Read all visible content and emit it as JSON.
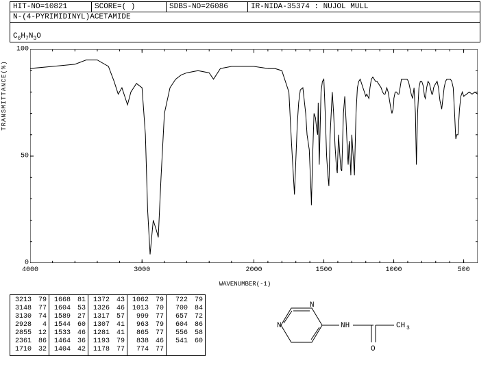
{
  "header": {
    "hit_no_label": "HIT-NO=",
    "hit_no": "10821",
    "score_label": "SCORE=",
    "score": "(   )",
    "sdbs_label": "SDBS-NO=",
    "sdbs_no": "26086",
    "method": "IR-NIDA-35374 : NUJOL MULL"
  },
  "compound_name": "N-(4-PYRIMIDINYL)ACETAMIDE",
  "formula_html": "C<sub>6</sub>H<sub>7</sub>N<sub>3</sub>O",
  "chart": {
    "type": "line",
    "y_label": "TRANSMITTANCE(%)",
    "x_label": "WAVENUMBER(-1)",
    "xlim": [
      4000,
      400
    ],
    "ylim": [
      0,
      100
    ],
    "x_ticks": [
      4000,
      3000,
      2000,
      1500,
      1000,
      500
    ],
    "y_ticks": [
      0,
      50,
      100
    ],
    "line_color": "#000000",
    "background": "#ffffff",
    "spectrum": [
      [
        4000,
        91
      ],
      [
        3800,
        92
      ],
      [
        3600,
        93
      ],
      [
        3500,
        95
      ],
      [
        3400,
        95
      ],
      [
        3300,
        92
      ],
      [
        3250,
        85
      ],
      [
        3213,
        79
      ],
      [
        3180,
        82
      ],
      [
        3148,
        77
      ],
      [
        3130,
        74
      ],
      [
        3100,
        80
      ],
      [
        3050,
        84
      ],
      [
        3000,
        82
      ],
      [
        2970,
        60
      ],
      [
        2950,
        25
      ],
      [
        2928,
        4
      ],
      [
        2900,
        20
      ],
      [
        2870,
        15
      ],
      [
        2855,
        12
      ],
      [
        2830,
        40
      ],
      [
        2800,
        70
      ],
      [
        2750,
        82
      ],
      [
        2700,
        86
      ],
      [
        2650,
        88
      ],
      [
        2600,
        89
      ],
      [
        2500,
        90
      ],
      [
        2400,
        89
      ],
      [
        2361,
        86
      ],
      [
        2300,
        91
      ],
      [
        2200,
        92
      ],
      [
        2100,
        92
      ],
      [
        2000,
        92
      ],
      [
        1900,
        91
      ],
      [
        1850,
        91
      ],
      [
        1800,
        90
      ],
      [
        1750,
        80
      ],
      [
        1730,
        55
      ],
      [
        1710,
        32
      ],
      [
        1690,
        65
      ],
      [
        1680,
        75
      ],
      [
        1668,
        81
      ],
      [
        1650,
        82
      ],
      [
        1630,
        70
      ],
      [
        1620,
        60
      ],
      [
        1604,
        53
      ],
      [
        1590,
        30
      ],
      [
        1589,
        27
      ],
      [
        1580,
        50
      ],
      [
        1570,
        70
      ],
      [
        1560,
        68
      ],
      [
        1550,
        62
      ],
      [
        1544,
        60
      ],
      [
        1540,
        75
      ],
      [
        1533,
        46
      ],
      [
        1520,
        80
      ],
      [
        1510,
        85
      ],
      [
        1500,
        86
      ],
      [
        1490,
        70
      ],
      [
        1480,
        50
      ],
      [
        1470,
        40
      ],
      [
        1464,
        36
      ],
      [
        1455,
        60
      ],
      [
        1440,
        80
      ],
      [
        1430,
        70
      ],
      [
        1420,
        55
      ],
      [
        1410,
        45
      ],
      [
        1404,
        42
      ],
      [
        1395,
        60
      ],
      [
        1385,
        50
      ],
      [
        1378,
        44
      ],
      [
        1372,
        43
      ],
      [
        1360,
        70
      ],
      [
        1350,
        78
      ],
      [
        1340,
        65
      ],
      [
        1330,
        50
      ],
      [
        1326,
        46
      ],
      [
        1320,
        55
      ],
      [
        1317,
        57
      ],
      [
        1310,
        45
      ],
      [
        1307,
        41
      ],
      [
        1300,
        60
      ],
      [
        1290,
        50
      ],
      [
        1281,
        41
      ],
      [
        1270,
        70
      ],
      [
        1260,
        82
      ],
      [
        1250,
        85
      ],
      [
        1240,
        86
      ],
      [
        1230,
        84
      ],
      [
        1220,
        82
      ],
      [
        1210,
        80
      ],
      [
        1200,
        78
      ],
      [
        1193,
        79
      ],
      [
        1185,
        78
      ],
      [
        1178,
        77
      ],
      [
        1170,
        82
      ],
      [
        1160,
        86
      ],
      [
        1150,
        87
      ],
      [
        1140,
        86
      ],
      [
        1130,
        85
      ],
      [
        1120,
        85
      ],
      [
        1110,
        84
      ],
      [
        1100,
        83
      ],
      [
        1090,
        82
      ],
      [
        1080,
        80
      ],
      [
        1070,
        79
      ],
      [
        1062,
        79
      ],
      [
        1050,
        82
      ],
      [
        1040,
        80
      ],
      [
        1030,
        76
      ],
      [
        1020,
        72
      ],
      [
        1013,
        70
      ],
      [
        1005,
        72
      ],
      [
        1000,
        75
      ],
      [
        999,
        77
      ],
      [
        990,
        80
      ],
      [
        980,
        80
      ],
      [
        970,
        79
      ],
      [
        963,
        79
      ],
      [
        955,
        82
      ],
      [
        945,
        86
      ],
      [
        935,
        86
      ],
      [
        925,
        86
      ],
      [
        915,
        86
      ],
      [
        905,
        86
      ],
      [
        895,
        85
      ],
      [
        885,
        82
      ],
      [
        875,
        79
      ],
      [
        865,
        77
      ],
      [
        855,
        82
      ],
      [
        845,
        70
      ],
      [
        838,
        46
      ],
      [
        830,
        70
      ],
      [
        820,
        82
      ],
      [
        810,
        85
      ],
      [
        800,
        85
      ],
      [
        790,
        83
      ],
      [
        780,
        78
      ],
      [
        774,
        77
      ],
      [
        765,
        82
      ],
      [
        755,
        85
      ],
      [
        745,
        84
      ],
      [
        735,
        81
      ],
      [
        728,
        79
      ],
      [
        722,
        79
      ],
      [
        715,
        82
      ],
      [
        708,
        83
      ],
      [
        700,
        84
      ],
      [
        690,
        85
      ],
      [
        680,
        82
      ],
      [
        670,
        76
      ],
      [
        660,
        73
      ],
      [
        657,
        72
      ],
      [
        650,
        76
      ],
      [
        640,
        82
      ],
      [
        630,
        85
      ],
      [
        620,
        86
      ],
      [
        610,
        86
      ],
      [
        604,
        86
      ],
      [
        595,
        86
      ],
      [
        585,
        85
      ],
      [
        575,
        82
      ],
      [
        565,
        70
      ],
      [
        558,
        60
      ],
      [
        556,
        58
      ],
      [
        550,
        60
      ],
      [
        545,
        60
      ],
      [
        541,
        60
      ],
      [
        530,
        72
      ],
      [
        520,
        78
      ],
      [
        510,
        80
      ],
      [
        500,
        78
      ],
      [
        480,
        79
      ],
      [
        460,
        80
      ],
      [
        440,
        79
      ],
      [
        420,
        80
      ],
      [
        400,
        79
      ]
    ]
  },
  "peak_table": {
    "columns": [
      [
        [
          3213,
          79
        ],
        [
          3148,
          77
        ],
        [
          3130,
          74
        ],
        [
          2928,
          4
        ],
        [
          2855,
          12
        ],
        [
          2361,
          86
        ],
        [
          1710,
          32
        ]
      ],
      [
        [
          1668,
          81
        ],
        [
          1604,
          53
        ],
        [
          1589,
          27
        ],
        [
          1544,
          60
        ],
        [
          1533,
          46
        ],
        [
          1464,
          36
        ],
        [
          1404,
          42
        ]
      ],
      [
        [
          1372,
          43
        ],
        [
          1326,
          46
        ],
        [
          1317,
          57
        ],
        [
          1307,
          41
        ],
        [
          1281,
          41
        ],
        [
          1193,
          79
        ],
        [
          1178,
          77
        ]
      ],
      [
        [
          1062,
          79
        ],
        [
          1013,
          70
        ],
        [
          999,
          77
        ],
        [
          963,
          79
        ],
        [
          865,
          77
        ],
        [
          838,
          46
        ],
        [
          774,
          77
        ]
      ],
      [
        [
          722,
          79
        ],
        [
          700,
          84
        ],
        [
          657,
          72
        ],
        [
          604,
          86
        ],
        [
          556,
          58
        ],
        [
          541,
          60
        ]
      ]
    ]
  },
  "structure": {
    "nh_label": "NH",
    "ch3_label": "CH3",
    "o_label": "O",
    "n_label": "N"
  }
}
